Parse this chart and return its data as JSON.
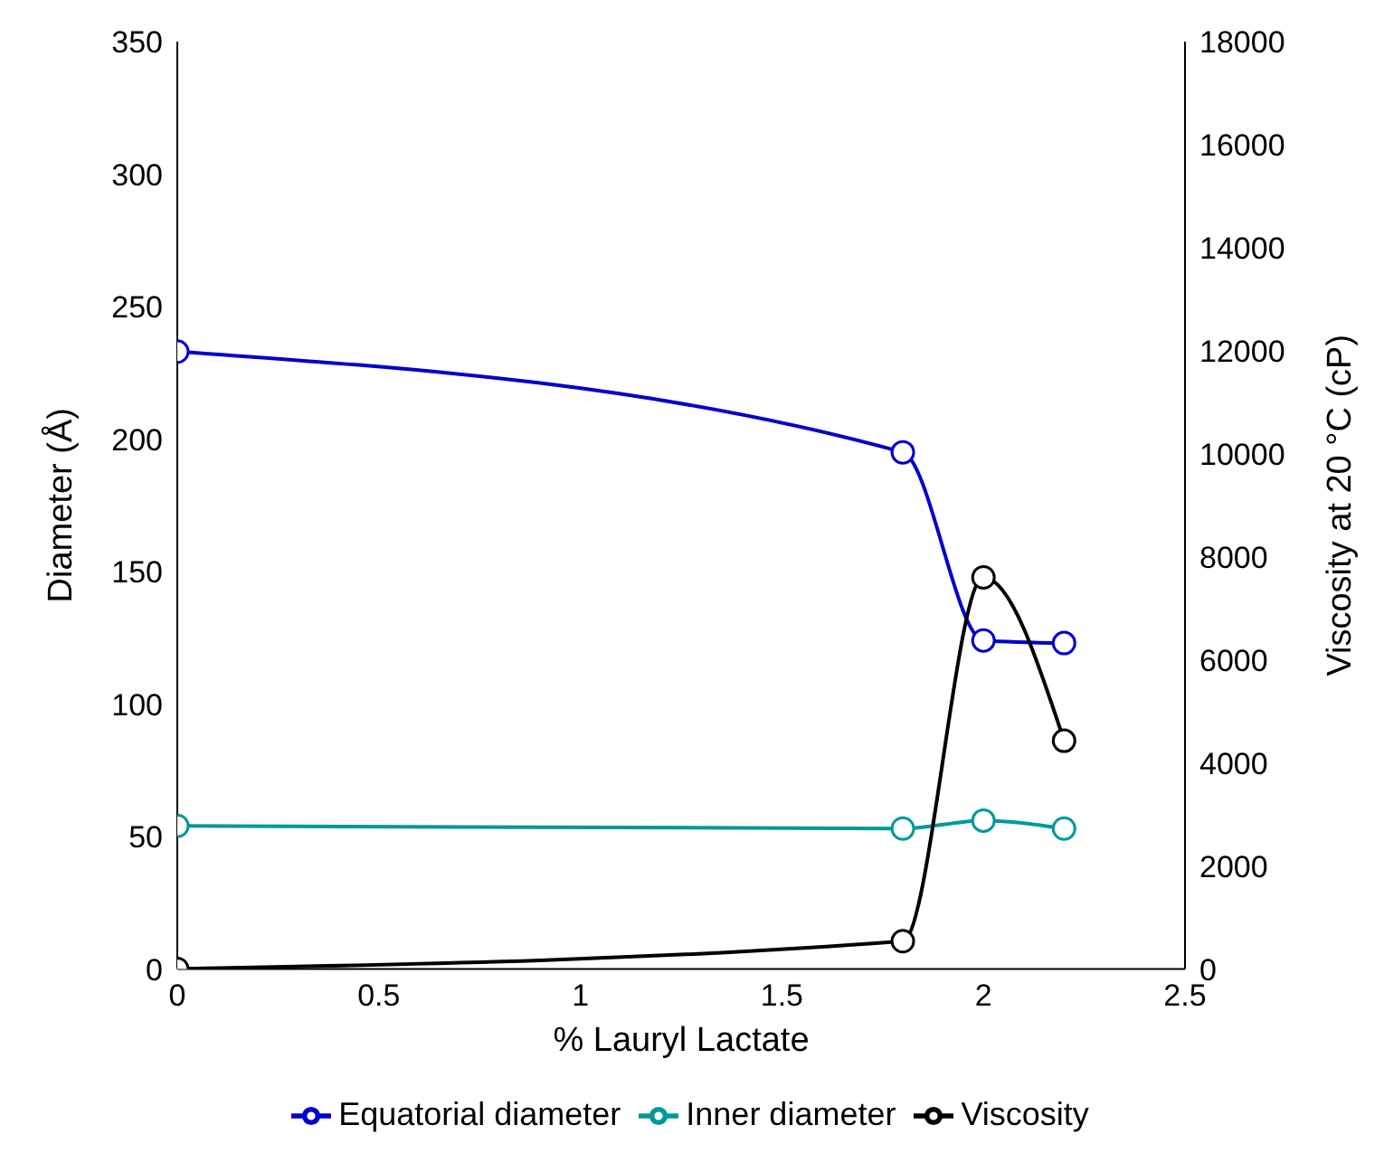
{
  "chart_data": {
    "type": "line",
    "xlabel": "% Lauryl Lactate",
    "ylabel": "Diameter (Å)",
    "y2label": "Viscosity at 20 °C (cP)",
    "xlim": [
      0,
      2.5
    ],
    "xticks": [
      0,
      0.5,
      1,
      1.5,
      2,
      2.5
    ],
    "ylim": [
      0,
      350
    ],
    "yticks": [
      0,
      50,
      100,
      150,
      200,
      250,
      300,
      350
    ],
    "y2lim": [
      0,
      18000
    ],
    "y2ticks": [
      0,
      2000,
      4000,
      6000,
      8000,
      10000,
      12000,
      14000,
      16000,
      18000
    ],
    "series": [
      {
        "name": "Equatorial diameter",
        "color": "#0000cc",
        "x": [
          0,
          1.8,
          2.0,
          2.2
        ],
        "values": [
          233,
          195,
          124,
          123
        ]
      },
      {
        "name": "Inner diameter",
        "color": "#009999",
        "x": [
          0,
          1.8,
          2.0,
          2.2
        ],
        "values": [
          54,
          53,
          56,
          53
        ]
      },
      {
        "name": "Viscosity",
        "color": "#000000",
        "axis": "y2",
        "x": [
          0,
          1.8,
          2.0,
          2.2
        ],
        "values": [
          0,
          540,
          7600,
          4430
        ]
      }
    ],
    "marker": "circle",
    "line_style": "solid",
    "legend": "bottom"
  }
}
